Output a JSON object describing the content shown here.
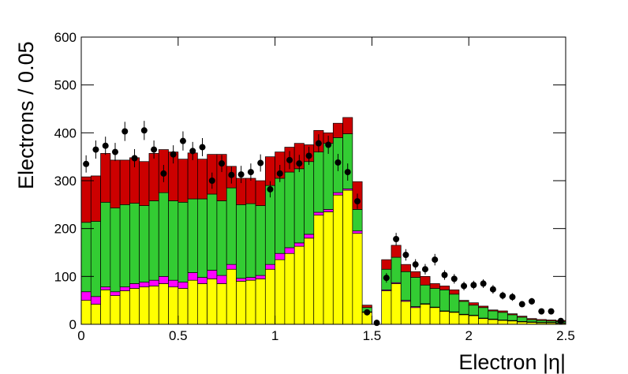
{
  "chart_data": {
    "type": "stacked-histogram",
    "xlabel": "Electron |η|",
    "ylabel": "Electrons / 0.05",
    "bins": [
      0,
      0.05,
      0.1,
      0.15,
      0.2,
      0.25,
      0.3,
      0.35,
      0.4,
      0.45,
      0.5,
      0.55,
      0.6,
      0.65,
      0.7,
      0.75,
      0.8,
      0.85,
      0.9,
      0.95,
      1,
      1.05,
      1.1,
      1.15,
      1.2,
      1.25,
      1.3,
      1.35,
      1.4,
      1.45,
      1.5,
      1.55,
      1.6,
      1.65,
      1.7,
      1.75,
      1.8,
      1.85,
      1.9,
      1.95,
      2,
      2.05,
      2.1,
      2.15,
      2.2,
      2.25,
      2.3,
      2.35,
      2.4,
      2.45,
      2.5
    ],
    "xlim": [
      0,
      2.5
    ],
    "xticks": [
      0,
      0.5,
      1,
      1.5,
      2,
      2.5
    ],
    "ylim": [
      0,
      600
    ],
    "yticks": [
      0,
      100,
      200,
      300,
      400,
      500,
      600
    ],
    "series": [
      {
        "color": "#ffff00",
        "values": [
          50,
          42,
          72,
          60,
          70,
          75,
          78,
          80,
          85,
          78,
          75,
          92,
          85,
          95,
          85,
          115,
          90,
          92,
          95,
          115,
          135,
          148,
          163,
          180,
          228,
          235,
          270,
          280,
          190,
          25,
          0,
          70,
          85,
          48,
          35,
          42,
          35,
          27,
          25,
          20,
          18,
          12,
          10,
          8,
          7,
          5,
          4,
          3,
          3,
          2
        ]
      },
      {
        "color": "#ff00ff",
        "values": [
          18,
          16,
          6,
          8,
          8,
          10,
          10,
          12,
          15,
          14,
          13,
          16,
          13,
          18,
          17,
          10,
          6,
          6,
          7,
          10,
          13,
          12,
          7,
          8,
          6,
          5,
          5,
          3,
          5,
          1,
          0,
          2,
          2,
          2,
          2,
          1,
          1,
          1,
          1,
          1,
          1,
          1,
          1,
          1,
          1,
          1,
          1,
          1,
          1,
          1
        ]
      },
      {
        "color": "#33cc33",
        "values": [
          145,
          157,
          177,
          175,
          172,
          168,
          160,
          166,
          175,
          166,
          167,
          154,
          164,
          159,
          156,
          160,
          154,
          154,
          146,
          165,
          157,
          158,
          155,
          152,
          126,
          138,
          115,
          115,
          45,
          9,
          0,
          43,
          53,
          60,
          61,
          39,
          39,
          44,
          37,
          27,
          21,
          22,
          17,
          16,
          12,
          9,
          5,
          4,
          3,
          3
        ]
      },
      {
        "color": "#cc0000",
        "values": [
          95,
          95,
          102,
          100,
          93,
          95,
          92,
          99,
          90,
          102,
          90,
          96,
          83,
          83,
          97,
          45,
          55,
          53,
          52,
          60,
          55,
          52,
          53,
          35,
          45,
          22,
          30,
          34,
          58,
          5,
          0,
          20,
          25,
          15,
          12,
          18,
          10,
          8,
          9,
          2,
          5,
          3,
          2,
          3,
          2,
          2,
          2,
          2,
          2,
          2
        ]
      }
    ],
    "points": {
      "color": "#000000",
      "values": [
        335,
        365,
        373,
        360,
        403,
        347,
        405,
        365,
        315,
        355,
        383,
        362,
        370,
        300,
        336,
        312,
        313,
        318,
        337,
        282,
        315,
        343,
        336,
        352,
        378,
        375,
        338,
        318,
        257,
        25,
        3,
        97,
        178,
        145,
        125,
        115,
        135,
        103,
        95,
        80,
        82,
        85,
        73,
        60,
        57,
        42,
        48,
        27,
        27,
        7
      ],
      "errors": [
        18,
        19,
        19,
        19,
        20,
        19,
        20,
        19,
        18,
        19,
        20,
        19,
        19,
        17,
        18,
        18,
        18,
        18,
        18,
        17,
        18,
        19,
        18,
        19,
        19,
        19,
        18,
        18,
        16,
        5,
        2,
        10,
        13,
        12,
        11,
        11,
        12,
        10,
        10,
        9,
        9,
        9,
        9,
        8,
        8,
        6,
        7,
        5,
        5,
        3
      ]
    }
  }
}
